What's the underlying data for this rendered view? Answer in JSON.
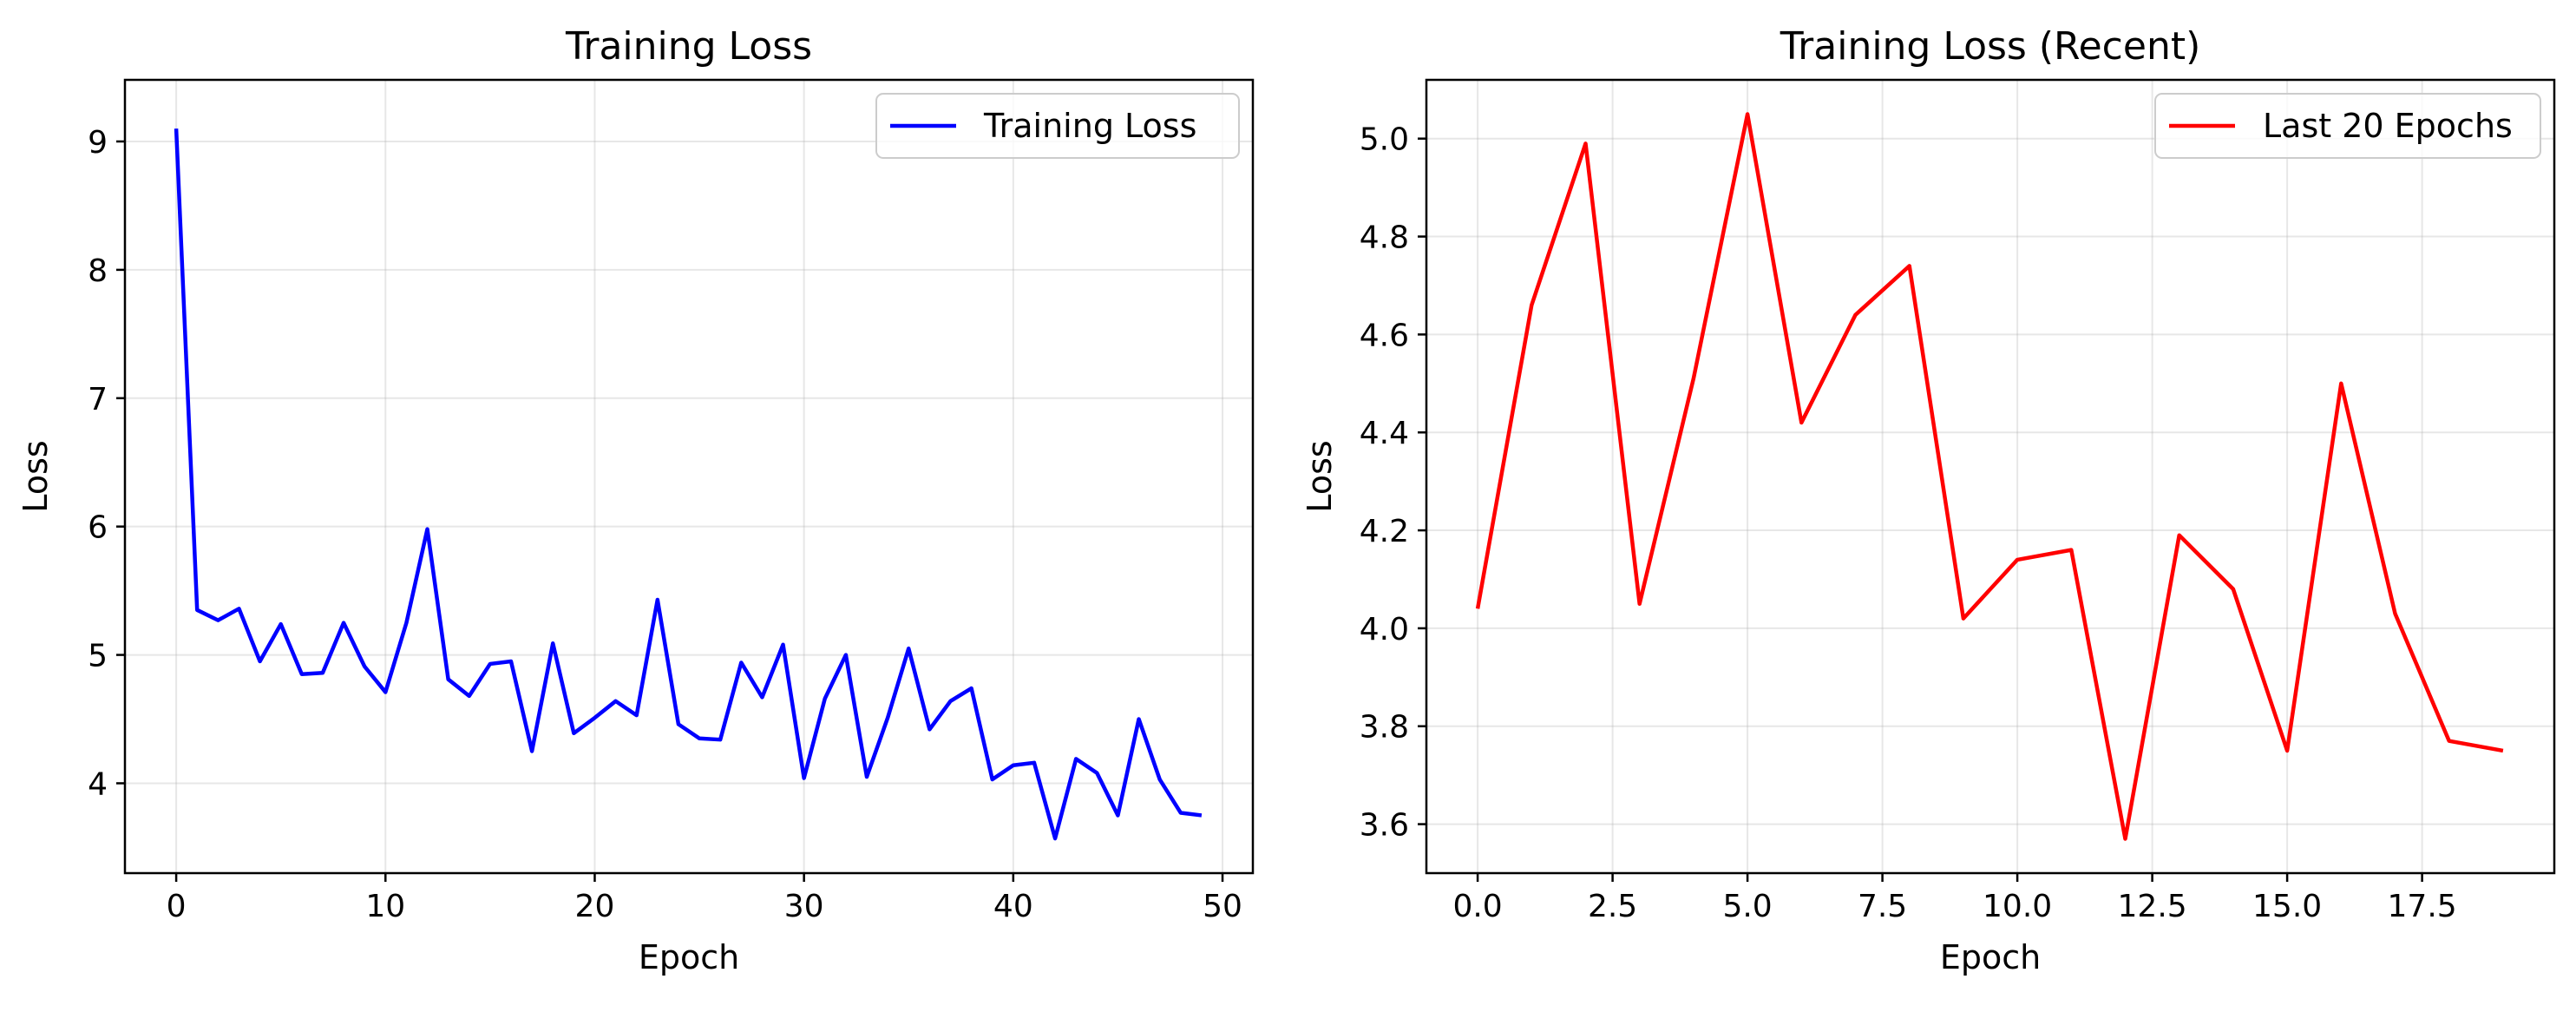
{
  "chart_data": [
    {
      "type": "line",
      "title": "Training Loss",
      "xlabel": "Epoch",
      "ylabel": "Loss",
      "xlim": [
        -2.45,
        51.45
      ],
      "ylim": [
        3.3,
        9.48
      ],
      "xticks": [
        0,
        10,
        20,
        30,
        40,
        50
      ],
      "xtick_labels": [
        "0",
        "10",
        "20",
        "30",
        "40",
        "50"
      ],
      "yticks": [
        4,
        5,
        6,
        7,
        8,
        9
      ],
      "ytick_labels": [
        "4",
        "5",
        "6",
        "7",
        "8",
        "9"
      ],
      "grid": true,
      "legend_position": "upper right",
      "series": [
        {
          "name": "Training Loss",
          "color": "#0000ff",
          "x": [
            0,
            1,
            2,
            3,
            4,
            5,
            6,
            7,
            8,
            9,
            10,
            11,
            12,
            13,
            14,
            15,
            16,
            17,
            18,
            19,
            20,
            21,
            22,
            23,
            24,
            25,
            26,
            27,
            28,
            29,
            30,
            31,
            32,
            33,
            34,
            35,
            36,
            37,
            38,
            39,
            40,
            41,
            42,
            43,
            44,
            45,
            46,
            47,
            48,
            49
          ],
          "values": [
            9.1,
            5.35,
            5.27,
            5.36,
            4.95,
            5.24,
            4.85,
            4.86,
            5.25,
            4.91,
            4.71,
            5.25,
            5.98,
            4.81,
            4.68,
            4.93,
            4.95,
            4.25,
            5.09,
            4.39,
            4.51,
            4.64,
            4.53,
            5.43,
            4.46,
            4.35,
            4.34,
            4.94,
            4.67,
            5.08,
            4.04,
            4.66,
            5.0,
            4.05,
            4.51,
            5.05,
            4.42,
            4.64,
            4.74,
            4.03,
            4.14,
            4.16,
            3.57,
            4.19,
            4.08,
            3.75,
            4.5,
            4.03,
            3.77,
            3.75
          ]
        }
      ]
    },
    {
      "type": "line",
      "title": "Training Loss (Recent)",
      "xlabel": "Epoch",
      "ylabel": "Loss",
      "xlim": [
        -0.95,
        19.95
      ],
      "ylim": [
        3.5,
        5.12
      ],
      "xticks": [
        0,
        2.5,
        5,
        7.5,
        10,
        12.5,
        15,
        17.5
      ],
      "xtick_labels": [
        "0.0",
        "2.5",
        "5.0",
        "7.5",
        "10.0",
        "12.5",
        "15.0",
        "17.5"
      ],
      "yticks": [
        3.6,
        3.8,
        4.0,
        4.2,
        4.4,
        4.6,
        4.8,
        5.0
      ],
      "ytick_labels": [
        "3.6",
        "3.8",
        "4.0",
        "4.2",
        "4.4",
        "4.6",
        "4.8",
        "5.0"
      ],
      "grid": true,
      "legend_position": "upper right",
      "series": [
        {
          "name": "Last 20 Epochs",
          "color": "#ff0000",
          "x": [
            0,
            1,
            2,
            3,
            4,
            5,
            6,
            7,
            8,
            9,
            10,
            11,
            12,
            13,
            14,
            15,
            16,
            17,
            18,
            19
          ],
          "values": [
            4.04,
            4.66,
            4.99,
            4.05,
            4.51,
            5.05,
            4.42,
            4.64,
            4.74,
            4.02,
            4.14,
            4.16,
            3.57,
            4.19,
            4.08,
            3.75,
            4.5,
            4.03,
            3.77,
            3.75
          ]
        }
      ]
    }
  ]
}
